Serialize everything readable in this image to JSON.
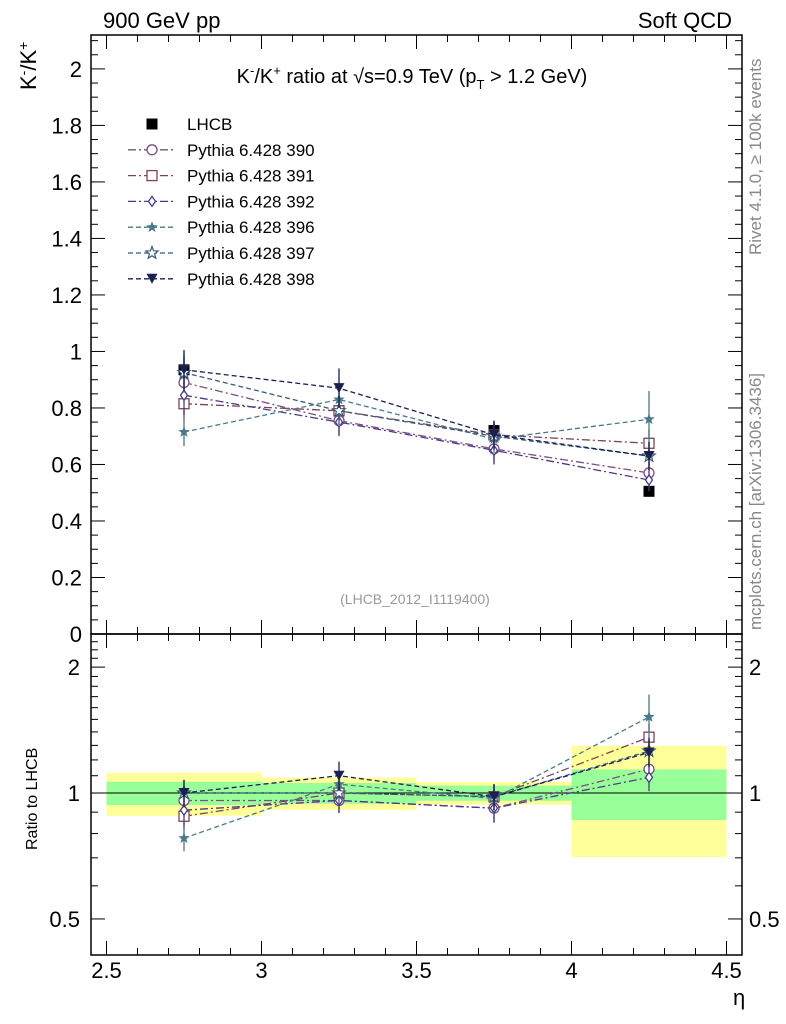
{
  "header": {
    "left": "900 GeV pp",
    "right": "Soft QCD"
  },
  "side_text": {
    "rivet": "Rivet 4.1.0, ≥ 100k events",
    "mcplots": "mcplots.cern.ch [arXiv:1306.3436]"
  },
  "chart_data": {
    "type": "scatter",
    "title_main": "K",
    "title_sup1": "-",
    "title_mid": "/K",
    "title_sup2": "+",
    "title_rest": " ratio at √s=0.9 TeV (p",
    "title_sub": "T",
    "title_end": " > 1.2 GeV)",
    "ylabel_main": "K",
    "ylabel_sup1": "-",
    "ylabel_mid": "/K",
    "ylabel_sup2": "+",
    "ratio_ylabel": "Ratio to LHCB",
    "xlabel": "η",
    "watermark": "(LHCB_2012_I1119400)",
    "xlim": [
      2.45,
      4.55
    ],
    "ylim": [
      0,
      2.12
    ],
    "ratio_ylim": [
      0.41,
      2.4
    ],
    "x_ticks": [
      "2.5",
      "3",
      "3.5",
      "4",
      "4.5"
    ],
    "y_ticks": [
      "0",
      "0.2",
      "0.4",
      "0.6",
      "0.8",
      "1",
      "1.2",
      "1.4",
      "1.6",
      "1.8",
      "2"
    ],
    "ratio_y_ticks": [
      "0.5",
      "1",
      "2"
    ],
    "x": [
      2.75,
      3.25,
      3.75,
      4.25
    ],
    "bins": [
      [
        2.5,
        3.0
      ],
      [
        3.0,
        3.5
      ],
      [
        3.5,
        4.0
      ],
      [
        4.0,
        4.5
      ]
    ],
    "series": [
      {
        "name": "LHCB",
        "marker": "filled-square",
        "color": "#000000",
        "values": [
          0.935,
          0.79,
          0.72,
          0.505
        ],
        "errors": [
          0.045,
          0.03,
          0.025,
          0.01
        ],
        "band_inner": [
          0.06,
          0.045,
          0.03,
          0.07
        ],
        "band_outer": [
          0.11,
          0.07,
          0.045,
          0.15
        ]
      },
      {
        "name": "Pythia 6.428 390",
        "marker": "open-circle",
        "color": "#7b4f83",
        "values": [
          0.89,
          0.755,
          0.655,
          0.57
        ],
        "errors": [
          0.07,
          0.05,
          0.05,
          0.04
        ],
        "ratio": [
          0.96,
          0.96,
          0.92,
          1.14
        ]
      },
      {
        "name": "Pythia 6.428 391",
        "marker": "open-square",
        "color": "#7a4557",
        "values": [
          0.815,
          0.79,
          0.705,
          0.675
        ],
        "errors": [
          0.06,
          0.05,
          0.05,
          0.05
        ],
        "ratio": [
          0.88,
          1.0,
          0.98,
          1.36
        ]
      },
      {
        "name": "Pythia 6.428 392",
        "marker": "open-diamond",
        "color": "#4b3a8a",
        "values": [
          0.845,
          0.75,
          0.65,
          0.545
        ],
        "errors": [
          0.07,
          0.05,
          0.05,
          0.04
        ],
        "ratio": [
          0.91,
          0.96,
          0.92,
          1.09
        ]
      },
      {
        "name": "Pythia 6.428 396",
        "marker": "filled-star",
        "color": "#4a7a8a",
        "values": [
          0.715,
          0.83,
          0.69,
          0.76
        ],
        "errors": [
          0.05,
          0.06,
          0.05,
          0.1
        ],
        "ratio": [
          0.78,
          1.05,
          0.97,
          1.52
        ]
      },
      {
        "name": "Pythia 6.428 397",
        "marker": "open-star",
        "color": "#3a5a7a",
        "values": [
          0.925,
          0.79,
          0.7,
          0.63
        ],
        "errors": [
          0.07,
          0.05,
          0.05,
          0.05
        ],
        "ratio": [
          1.0,
          1.0,
          0.98,
          1.26
        ]
      },
      {
        "name": "Pythia 6.428 398",
        "marker": "filled-triangle-down",
        "color": "#1a2050",
        "values": [
          0.935,
          0.87,
          0.705,
          0.63
        ],
        "errors": [
          0.07,
          0.07,
          0.05,
          0.05
        ],
        "ratio": [
          1.0,
          1.1,
          0.98,
          1.25
        ]
      }
    ]
  }
}
